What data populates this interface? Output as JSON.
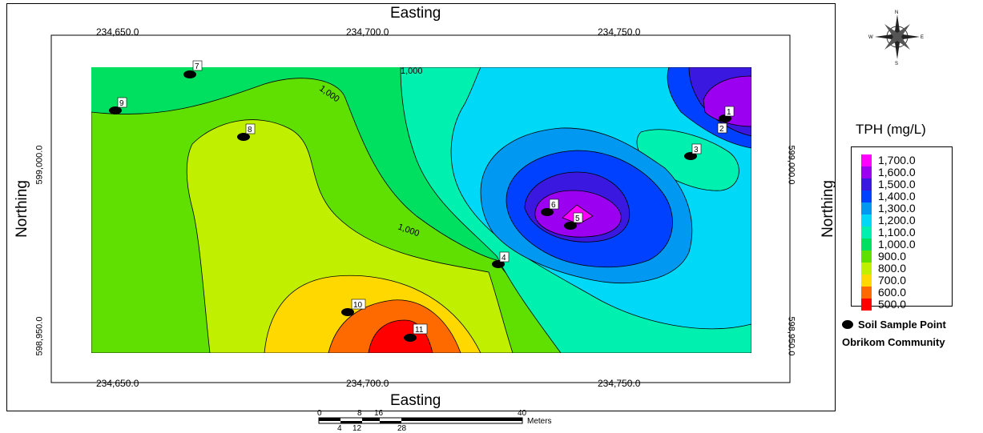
{
  "axes": {
    "top_title": "Easting",
    "bottom_title": "Easting",
    "left_title": "Northing",
    "right_title": "Northing",
    "easting_ticks": [
      "234,650.0",
      "234,700.0",
      "234,750.0"
    ],
    "northing_ticks": [
      "599,000.0",
      "598,950.0"
    ]
  },
  "contour_labels": [
    "1,000",
    "1,000",
    "1,000"
  ],
  "sample_points": [
    "1",
    "2",
    "3",
    "4",
    "5",
    "6",
    "7",
    "8",
    "9",
    "10",
    "11"
  ],
  "legend": {
    "title": "TPH (mg/L)",
    "levels": [
      {
        "label": "1,700.0",
        "color": "#ff00ff"
      },
      {
        "label": "1,600.0",
        "color": "#9b00f0"
      },
      {
        "label": "1,500.0",
        "color": "#3a18e0"
      },
      {
        "label": "1,400.0",
        "color": "#0040ff"
      },
      {
        "label": "1,300.0",
        "color": "#0098f0"
      },
      {
        "label": "1,200.0",
        "color": "#00d8f8"
      },
      {
        "label": "1,100.0",
        "color": "#00f0b0"
      },
      {
        "label": "1,000.0",
        "color": "#00e060"
      },
      {
        "label": "900.0",
        "color": "#60e000"
      },
      {
        "label": "800.0",
        "color": "#c0f000"
      },
      {
        "label": "700.0",
        "color": "#ffd800"
      },
      {
        "label": "600.0",
        "color": "#ff6a00"
      },
      {
        "label": "500.0",
        "color": "#ff0000"
      }
    ],
    "sample_label": "Soil Sample Point",
    "community_label": "Obrikom Community"
  },
  "compass": {
    "n": "N",
    "s": "S",
    "e": "E",
    "w": "W"
  },
  "scale_bar": {
    "top_ticks": [
      "0",
      "8",
      "16",
      "40"
    ],
    "bottom_ticks": [
      "4",
      "12",
      "28"
    ],
    "unit": "Meters"
  }
}
